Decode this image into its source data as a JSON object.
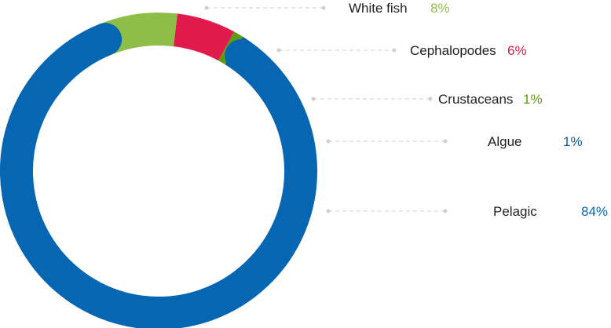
{
  "chart_data": {
    "type": "pie",
    "style": "donut",
    "legend_position": "right",
    "categories": [
      "White fish",
      "Cephalopodes",
      "Crustaceans",
      "Algue",
      "Pelagic"
    ],
    "values": [
      8,
      6,
      1,
      1,
      84
    ],
    "value_labels": [
      "8%",
      "6%",
      "1%",
      "1%",
      "84%"
    ],
    "colors": [
      "#8ebd48",
      "#e01a4c",
      "#5e9a12",
      "#0a5e91",
      "#0766b1"
    ],
    "leader_dot_color": "#cfcfcf",
    "leader_line_color": "#d0d0d0"
  }
}
